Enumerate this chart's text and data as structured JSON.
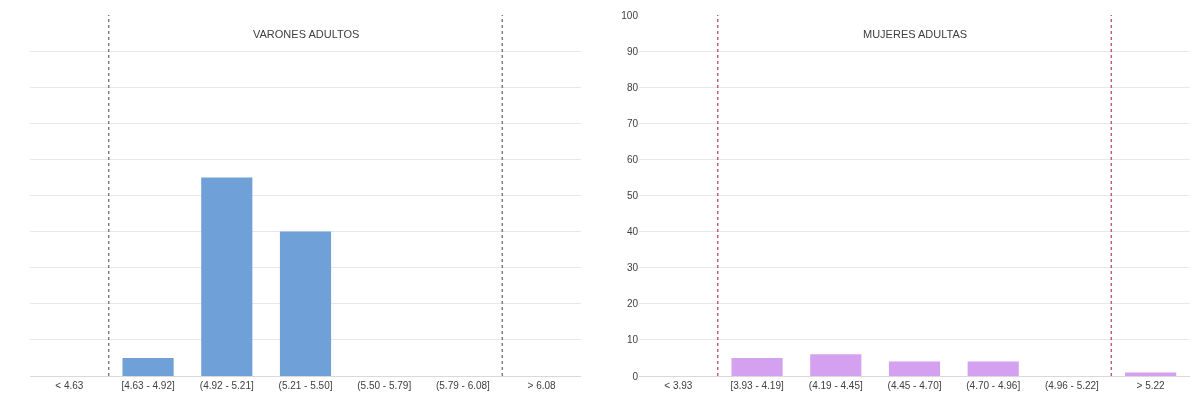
{
  "chart_data": [
    {
      "type": "bar",
      "title": "VARONES ADULTOS",
      "categories": [
        "< 4.63",
        "[4.63 - 4.92]",
        "(4.92 - 5.21]",
        "(5.21 - 5.50]",
        "(5.50 - 5.79]",
        "(5.79 - 6.08]",
        "> 6.08"
      ],
      "values": [
        0,
        5,
        55,
        40,
        0,
        0,
        0
      ],
      "color": "#6fa0d8",
      "ylim": [
        0,
        100
      ],
      "yticks": [
        0,
        10,
        20,
        30,
        40,
        50,
        60,
        70,
        80,
        90,
        100
      ],
      "tick_labels": "x",
      "grid": "y"
    },
    {
      "type": "bar",
      "title": "MUJERES ADULTAS",
      "categories": [
        "< 3.93",
        "[3.93 - 4.19]",
        "(4.19 - 4.45]",
        "(4.45 - 4.70]",
        "(4.70 - 4.96]",
        "(4.96 - 5.22]",
        "> 5.22"
      ],
      "values": [
        0,
        5,
        6,
        4,
        4,
        0,
        1
      ],
      "color": "#d4a0f0",
      "ylim": [
        0,
        100
      ],
      "yticks": [
        0,
        10,
        20,
        30,
        40,
        50,
        60,
        70,
        80,
        90,
        100
      ],
      "grid": "y"
    }
  ]
}
